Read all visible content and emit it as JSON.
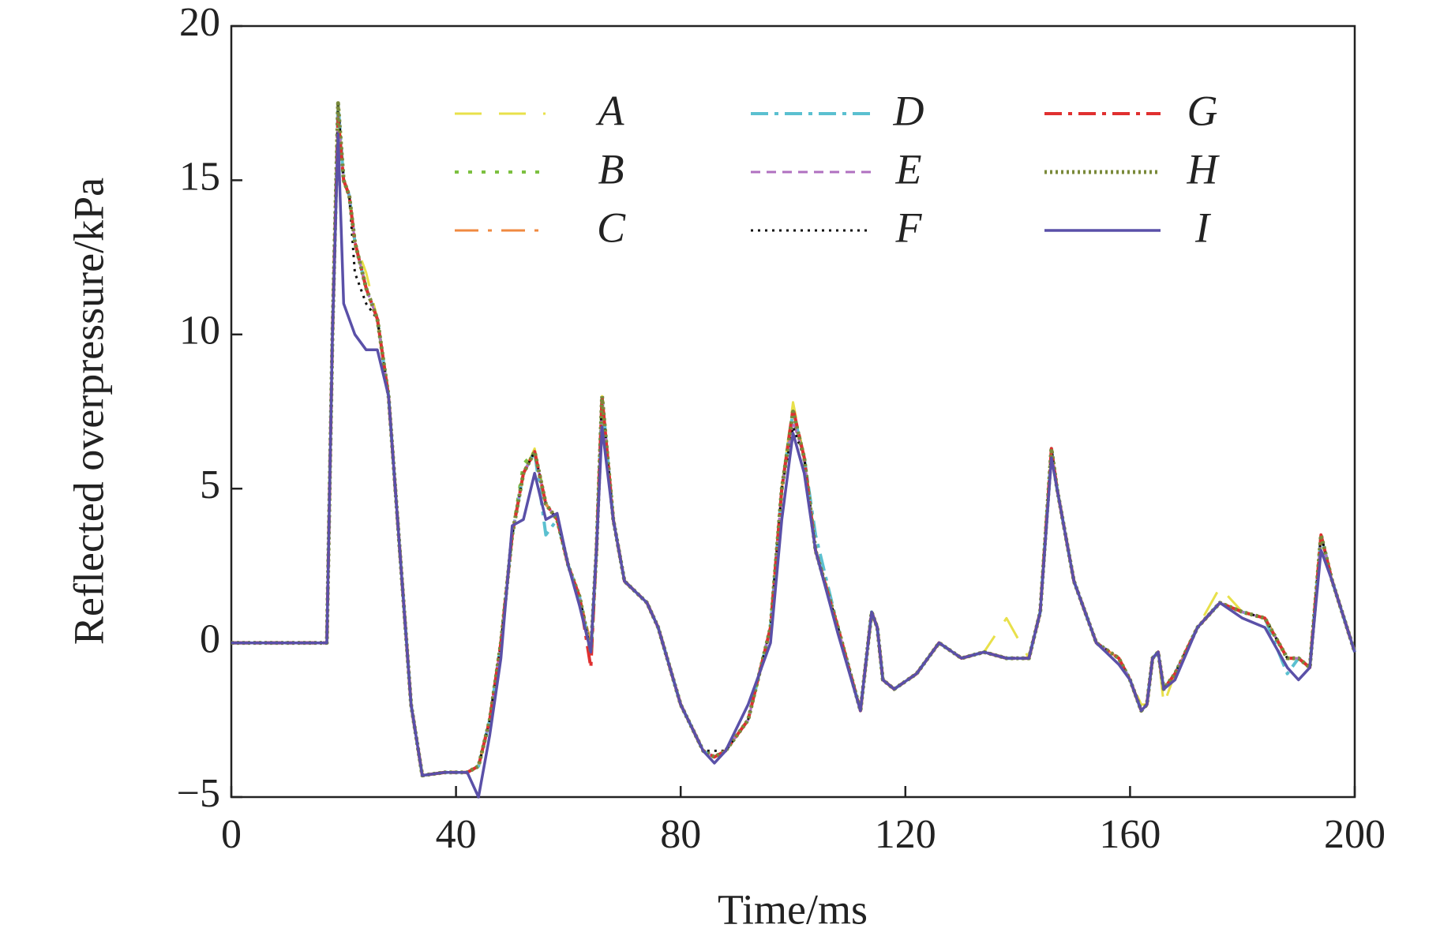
{
  "chart_data": {
    "type": "line",
    "xlabel": "Time/ms",
    "ylabel": "Reflected overpressure/kPa",
    "xlim": [
      0,
      200
    ],
    "ylim": [
      -5,
      20
    ],
    "xticks": [
      0,
      40,
      80,
      120,
      160,
      200
    ],
    "yticks": [
      {
        "value": -5,
        "label": "−5"
      },
      0,
      5,
      10,
      15,
      20
    ],
    "grid": false,
    "legend": "top",
    "x": [
      0,
      17,
      18,
      19,
      20,
      21,
      22,
      24,
      26,
      28,
      30,
      32,
      34,
      38,
      42,
      44,
      46,
      48,
      50,
      52,
      54,
      56,
      58,
      60,
      62,
      64,
      65,
      66,
      68,
      70,
      74,
      76,
      80,
      84,
      86,
      88,
      92,
      96,
      98,
      100,
      102,
      104,
      108,
      112,
      114,
      115,
      116,
      118,
      122,
      126,
      130,
      134,
      138,
      142,
      144,
      146,
      147,
      150,
      154,
      158,
      160,
      162,
      163,
      164,
      165,
      166,
      168,
      172,
      176,
      180,
      184,
      188,
      190,
      192,
      194,
      196,
      200
    ],
    "series": [
      {
        "name": "A",
        "color": "#e8e04a",
        "dash": "34,22",
        "width": 3,
        "values": [
          0,
          0,
          10,
          17.5,
          15,
          14.5,
          13,
          12,
          10.5,
          8,
          3,
          -2,
          -4.3,
          -4.2,
          -4.2,
          -4,
          -2.5,
          0,
          3.5,
          5.5,
          6.3,
          4.5,
          4,
          2.5,
          1.5,
          -0.3,
          3,
          8,
          4,
          2,
          1.3,
          0.5,
          -2,
          -3.5,
          -3.7,
          -3.5,
          -2.5,
          0.5,
          5,
          7.8,
          6,
          3,
          0.5,
          -2.2,
          1,
          0.5,
          -1.2,
          -1.5,
          -1,
          0,
          -0.5,
          -0.3,
          0.8,
          -0.5,
          1,
          6.3,
          5,
          2,
          0,
          -0.5,
          -1.2,
          -2,
          -2,
          -0.5,
          -0.3,
          -2,
          -1,
          0.5,
          1.8,
          1,
          0.8,
          -0.5,
          -0.5,
          -0.8,
          3.5,
          2,
          -0.3
        ]
      },
      {
        "name": "B",
        "color": "#7cc040",
        "dash": "5,12",
        "width": 4,
        "values": [
          0,
          0,
          10,
          17,
          15,
          14.5,
          13,
          11.5,
          10.5,
          8,
          3,
          -2,
          -4.3,
          -4.2,
          -4.2,
          -4,
          -2.5,
          0,
          3.5,
          5.8,
          6.2,
          4.5,
          4,
          2.5,
          1.5,
          -0.3,
          3,
          8,
          4,
          2,
          1.3,
          0.5,
          -2,
          -3.5,
          -3.7,
          -3.5,
          -2.5,
          0.5,
          5,
          7.5,
          6,
          3,
          0.5,
          -2.2,
          1,
          0.5,
          -1.2,
          -1.5,
          -1,
          0,
          -0.5,
          -0.3,
          -0.5,
          -0.5,
          1,
          6.3,
          5,
          2,
          0,
          -0.5,
          -1.2,
          -2.2,
          -2,
          -0.5,
          -0.3,
          -1.5,
          -1,
          0.5,
          1.3,
          1,
          0.8,
          -0.5,
          -0.5,
          -0.8,
          3.5,
          2,
          -0.3
        ]
      },
      {
        "name": "C",
        "color": "#f08a40",
        "dash": "30,12,5,12",
        "width": 3,
        "values": [
          0,
          0,
          10,
          16.5,
          15,
          14.5,
          13,
          11.5,
          10.5,
          8,
          3,
          -2,
          -4.3,
          -4.2,
          -4.2,
          -4,
          -2.5,
          0,
          3.5,
          5.5,
          6.2,
          4.5,
          4,
          2.5,
          1.5,
          0,
          3,
          8,
          4,
          2,
          1.3,
          0.5,
          -2,
          -3.5,
          -3.7,
          -3.5,
          -2.5,
          0.5,
          5,
          7.5,
          6,
          3,
          0.5,
          -2.2,
          1,
          0.5,
          -1.2,
          -1.5,
          -1,
          0,
          -0.5,
          -0.3,
          -0.5,
          -0.5,
          1,
          6.3,
          5,
          2,
          0,
          -0.5,
          -1.2,
          -2.2,
          -2,
          -0.5,
          -0.3,
          -1.5,
          -1,
          0.5,
          1.3,
          1,
          0.8,
          -0.5,
          -0.5,
          -0.8,
          3.5,
          2,
          -0.3
        ]
      },
      {
        "name": "D",
        "color": "#5bc0d0",
        "dash": "22,8,5,8",
        "width": 4,
        "values": [
          0,
          0,
          10,
          17.5,
          15,
          14.5,
          13,
          11.5,
          10.5,
          8,
          3,
          -2,
          -4.3,
          -4.2,
          -4.2,
          -4,
          -2.5,
          0,
          3.5,
          5.5,
          6.2,
          3.5,
          4,
          2.5,
          1.5,
          -0.3,
          3,
          8,
          4,
          2,
          1.3,
          0.5,
          -2,
          -3.5,
          -3.7,
          -3.5,
          -2.5,
          0.5,
          5,
          7.5,
          6,
          3.5,
          0.5,
          -2.2,
          1,
          0.5,
          -1.2,
          -1.5,
          -1,
          0,
          -0.5,
          -0.3,
          -0.5,
          -0.5,
          1,
          6.3,
          5,
          2,
          0,
          -0.5,
          -1.2,
          -2.2,
          -2,
          -0.5,
          -0.3,
          -1.5,
          -1,
          0.5,
          1.3,
          1,
          0.8,
          -1,
          -0.5,
          -0.8,
          3.5,
          2,
          -0.3
        ]
      },
      {
        "name": "E",
        "color": "#b070c0",
        "dash": "12,8",
        "width": 3,
        "values": [
          0,
          0,
          10,
          17.2,
          15,
          14.5,
          13,
          11.5,
          10.5,
          8,
          3,
          -2,
          -4.3,
          -4.2,
          -4.2,
          -4,
          -2.5,
          0,
          3.5,
          5.5,
          6.2,
          4.5,
          4,
          2.5,
          1.5,
          -0.3,
          3,
          8,
          4,
          2,
          1.3,
          0.5,
          -2,
          -3.5,
          -3.7,
          -3.5,
          -2.5,
          0.5,
          5,
          7.2,
          6,
          3,
          0.5,
          -2.2,
          1,
          0.5,
          -1.2,
          -1.5,
          -1,
          0,
          -0.5,
          -0.3,
          -0.5,
          -0.5,
          1,
          6.3,
          5,
          2,
          0,
          -0.5,
          -1.2,
          -2.2,
          -2,
          -0.5,
          -0.3,
          -1.5,
          -1,
          0.5,
          1.3,
          1,
          0.8,
          -0.5,
          -0.5,
          -0.8,
          3.5,
          2,
          -0.3
        ]
      },
      {
        "name": "F",
        "color": "#111111",
        "dash": "3,6",
        "width": 3,
        "values": [
          0,
          0,
          10,
          17.5,
          15,
          14.5,
          12,
          11,
          10.5,
          8,
          3,
          -2,
          -4.3,
          -4.2,
          -4.2,
          -4,
          -2.5,
          0,
          3.5,
          5.5,
          6.2,
          4.5,
          4,
          2.5,
          1.5,
          -0.3,
          3,
          8,
          4,
          2,
          1.3,
          0.5,
          -2,
          -3.5,
          -3.5,
          -3.5,
          -2.5,
          0.5,
          5,
          7,
          6,
          3,
          0.5,
          -2.2,
          1,
          0.5,
          -1.2,
          -1.5,
          -1,
          0,
          -0.5,
          -0.3,
          -0.5,
          -0.5,
          1,
          6.3,
          5,
          2,
          0,
          -0.5,
          -1.2,
          -2.2,
          -2,
          -0.5,
          -0.3,
          -1.5,
          -1,
          0.5,
          1.3,
          1,
          0.8,
          -0.5,
          -0.5,
          -0.8,
          3.5,
          2,
          -0.3
        ]
      },
      {
        "name": "G",
        "color": "#e03030",
        "dash": "22,8,5,8",
        "width": 4,
        "values": [
          0,
          0,
          10,
          17,
          15,
          14.5,
          13,
          11.5,
          10.5,
          8,
          3,
          -2,
          -4.3,
          -4.2,
          -4.2,
          -4,
          -2.5,
          0,
          3.5,
          5.5,
          6.2,
          4.5,
          4,
          2.5,
          1.5,
          -0.8,
          3,
          8,
          4,
          2,
          1.3,
          0.5,
          -2,
          -3.5,
          -3.7,
          -3.5,
          -2.5,
          0.5,
          5,
          7.6,
          6,
          3,
          0.5,
          -2.2,
          1,
          0.5,
          -1.2,
          -1.5,
          -1,
          0,
          -0.5,
          -0.3,
          -0.5,
          -0.5,
          1,
          6.3,
          5,
          2,
          0,
          -0.5,
          -1.2,
          -2.2,
          -2,
          -0.5,
          -0.3,
          -1.5,
          -1,
          0.5,
          1.3,
          1,
          0.8,
          -0.5,
          -0.5,
          -0.8,
          3.5,
          2,
          -0.3
        ]
      },
      {
        "name": "H",
        "color": "#7a8a3a",
        "dash": "3,4",
        "width": 5,
        "values": [
          0,
          0,
          10,
          17.5,
          15,
          14.5,
          13,
          11.5,
          10.5,
          8,
          3,
          -2,
          -4.3,
          -4.2,
          -4.2,
          -4,
          -2.5,
          0,
          3.5,
          5.5,
          6.2,
          4.5,
          4,
          2.5,
          1.5,
          -0.3,
          3,
          8,
          4,
          2,
          1.3,
          0.5,
          -2,
          -3.5,
          -3.7,
          -3.5,
          -2.5,
          0.5,
          5,
          7.5,
          6,
          3,
          0.5,
          -2.2,
          1,
          0.5,
          -1.2,
          -1.5,
          -1,
          0,
          -0.5,
          -0.3,
          -0.5,
          -0.5,
          1,
          6.3,
          5,
          2,
          0,
          -0.5,
          -1.2,
          -2.2,
          -2,
          -0.5,
          -0.3,
          -1.5,
          -1,
          0.5,
          1.3,
          1,
          0.8,
          -0.5,
          -0.5,
          -0.8,
          3.5,
          2,
          -0.3
        ]
      },
      {
        "name": "I",
        "color": "#5a50a8",
        "dash": "none",
        "width": 3.5,
        "values": [
          0,
          0,
          10,
          16.5,
          11,
          10.5,
          10,
          9.5,
          9.5,
          8,
          3,
          -2,
          -4.3,
          -4.2,
          -4.2,
          -5,
          -3,
          -0.5,
          3.8,
          4,
          5.5,
          4,
          4.2,
          2.5,
          1.2,
          -0.3,
          3,
          7,
          4,
          2,
          1.3,
          0.5,
          -2,
          -3.5,
          -3.9,
          -3.5,
          -2,
          0,
          4,
          6.8,
          5.5,
          3,
          0.3,
          -2.2,
          1,
          0.5,
          -1.2,
          -1.5,
          -1,
          0,
          -0.5,
          -0.3,
          -0.5,
          -0.5,
          1,
          6,
          5,
          2,
          0,
          -0.7,
          -1.2,
          -2.2,
          -2,
          -0.5,
          -0.3,
          -1.5,
          -1.2,
          0.5,
          1.3,
          0.8,
          0.5,
          -0.8,
          -1.2,
          -0.8,
          3,
          2,
          -0.3
        ]
      }
    ]
  }
}
